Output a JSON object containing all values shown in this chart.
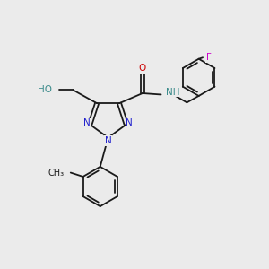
{
  "background_color": "#ebebeb",
  "bond_color": "#1a1a1a",
  "n_color": "#2020cc",
  "o_color": "#cc0000",
  "f_color": "#cc00cc",
  "ho_color": "#3a8a8a",
  "nh_color": "#3a8a8a",
  "figsize": [
    3.0,
    3.0
  ],
  "dpi": 100,
  "lw": 1.3,
  "fs": 7.5,
  "xlim": [
    0,
    10
  ],
  "ylim": [
    0,
    10
  ]
}
